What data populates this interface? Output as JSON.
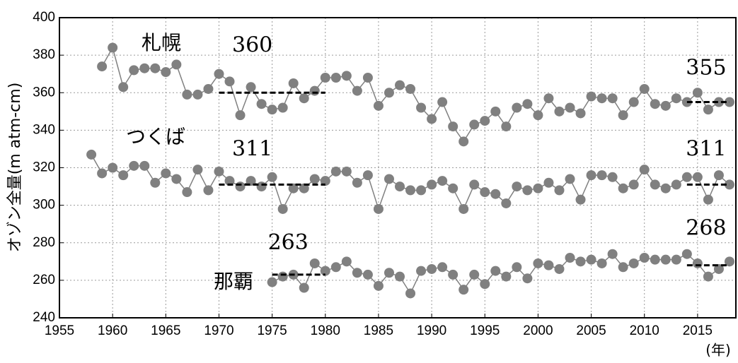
{
  "chart_data": {
    "type": "line",
    "y_label": "オゾン全量(m atm-cm)",
    "x_label": "(年)",
    "x": [
      1958,
      1959,
      1960,
      1961,
      1962,
      1963,
      1964,
      1965,
      1966,
      1967,
      1968,
      1969,
      1970,
      1971,
      1972,
      1973,
      1974,
      1975,
      1976,
      1977,
      1978,
      1979,
      1980,
      1981,
      1982,
      1983,
      1984,
      1985,
      1986,
      1987,
      1988,
      1989,
      1990,
      1991,
      1992,
      1993,
      1994,
      1995,
      1996,
      1997,
      1998,
      1999,
      2000,
      2001,
      2002,
      2003,
      2004,
      2005,
      2006,
      2007,
      2008,
      2009,
      2010,
      2011,
      2012,
      2013,
      2014,
      2015,
      2016,
      2017,
      2018
    ],
    "series": [
      {
        "name": "札幌",
        "color": "#808080",
        "values": [
          null,
          374,
          384,
          363,
          372,
          373,
          373,
          371,
          375,
          359,
          359,
          362,
          370,
          366,
          348,
          363,
          354,
          351,
          352,
          365,
          357,
          361,
          368,
          368,
          369,
          361,
          368,
          353,
          360,
          364,
          362,
          352,
          346,
          355,
          342,
          334,
          343,
          345,
          350,
          342,
          352,
          354,
          348,
          357,
          350,
          352,
          349,
          358,
          357,
          357,
          348,
          355,
          362,
          354,
          353,
          357,
          355,
          360,
          351,
          355,
          355
        ]
      },
      {
        "name": "つくば",
        "color": "#808080",
        "values": [
          327,
          317,
          320,
          316,
          321,
          321,
          312,
          317,
          314,
          307,
          319,
          308,
          318,
          313,
          310,
          313,
          310,
          315,
          298,
          309,
          309,
          314,
          313,
          318,
          318,
          312,
          316,
          298,
          314,
          310,
          308,
          308,
          311,
          313,
          309,
          298,
          311,
          307,
          306,
          301,
          310,
          308,
          309,
          312,
          308,
          314,
          303,
          316,
          316,
          315,
          309,
          311,
          319,
          311,
          309,
          311,
          315,
          315,
          303,
          316,
          311
        ]
      },
      {
        "name": "那覇",
        "color": "#808080",
        "values": [
          null,
          null,
          null,
          null,
          null,
          null,
          null,
          null,
          null,
          null,
          null,
          null,
          null,
          null,
          null,
          null,
          null,
          259,
          262,
          263,
          256,
          269,
          265,
          267,
          270,
          264,
          263,
          257,
          264,
          262,
          253,
          265,
          266,
          267,
          263,
          255,
          263,
          258,
          265,
          262,
          267,
          261,
          269,
          268,
          266,
          272,
          270,
          271,
          269,
          274,
          267,
          269,
          272,
          271,
          271,
          271,
          274,
          269,
          262,
          266,
          270
        ]
      }
    ],
    "reference_lines": [
      {
        "x": [
          1970,
          1980
        ],
        "value": 360
      },
      {
        "x": [
          2014,
          2018
        ],
        "value": 355
      },
      {
        "x": [
          1970,
          1980
        ],
        "value": 311
      },
      {
        "x": [
          2014,
          2018
        ],
        "value": 311
      },
      {
        "x": [
          1975,
          1980
        ],
        "value": 263
      },
      {
        "x": [
          2014,
          2018
        ],
        "value": 268
      }
    ],
    "xlim": [
      1955,
      2018.6
    ],
    "ylim": [
      240,
      400
    ],
    "xticks": [
      1955,
      1960,
      1965,
      1970,
      1975,
      1980,
      1985,
      1990,
      1995,
      2000,
      2005,
      2010,
      2015
    ],
    "yticks": [
      240,
      260,
      280,
      300,
      320,
      340,
      360,
      380,
      400
    ],
    "grid": true
  }
}
